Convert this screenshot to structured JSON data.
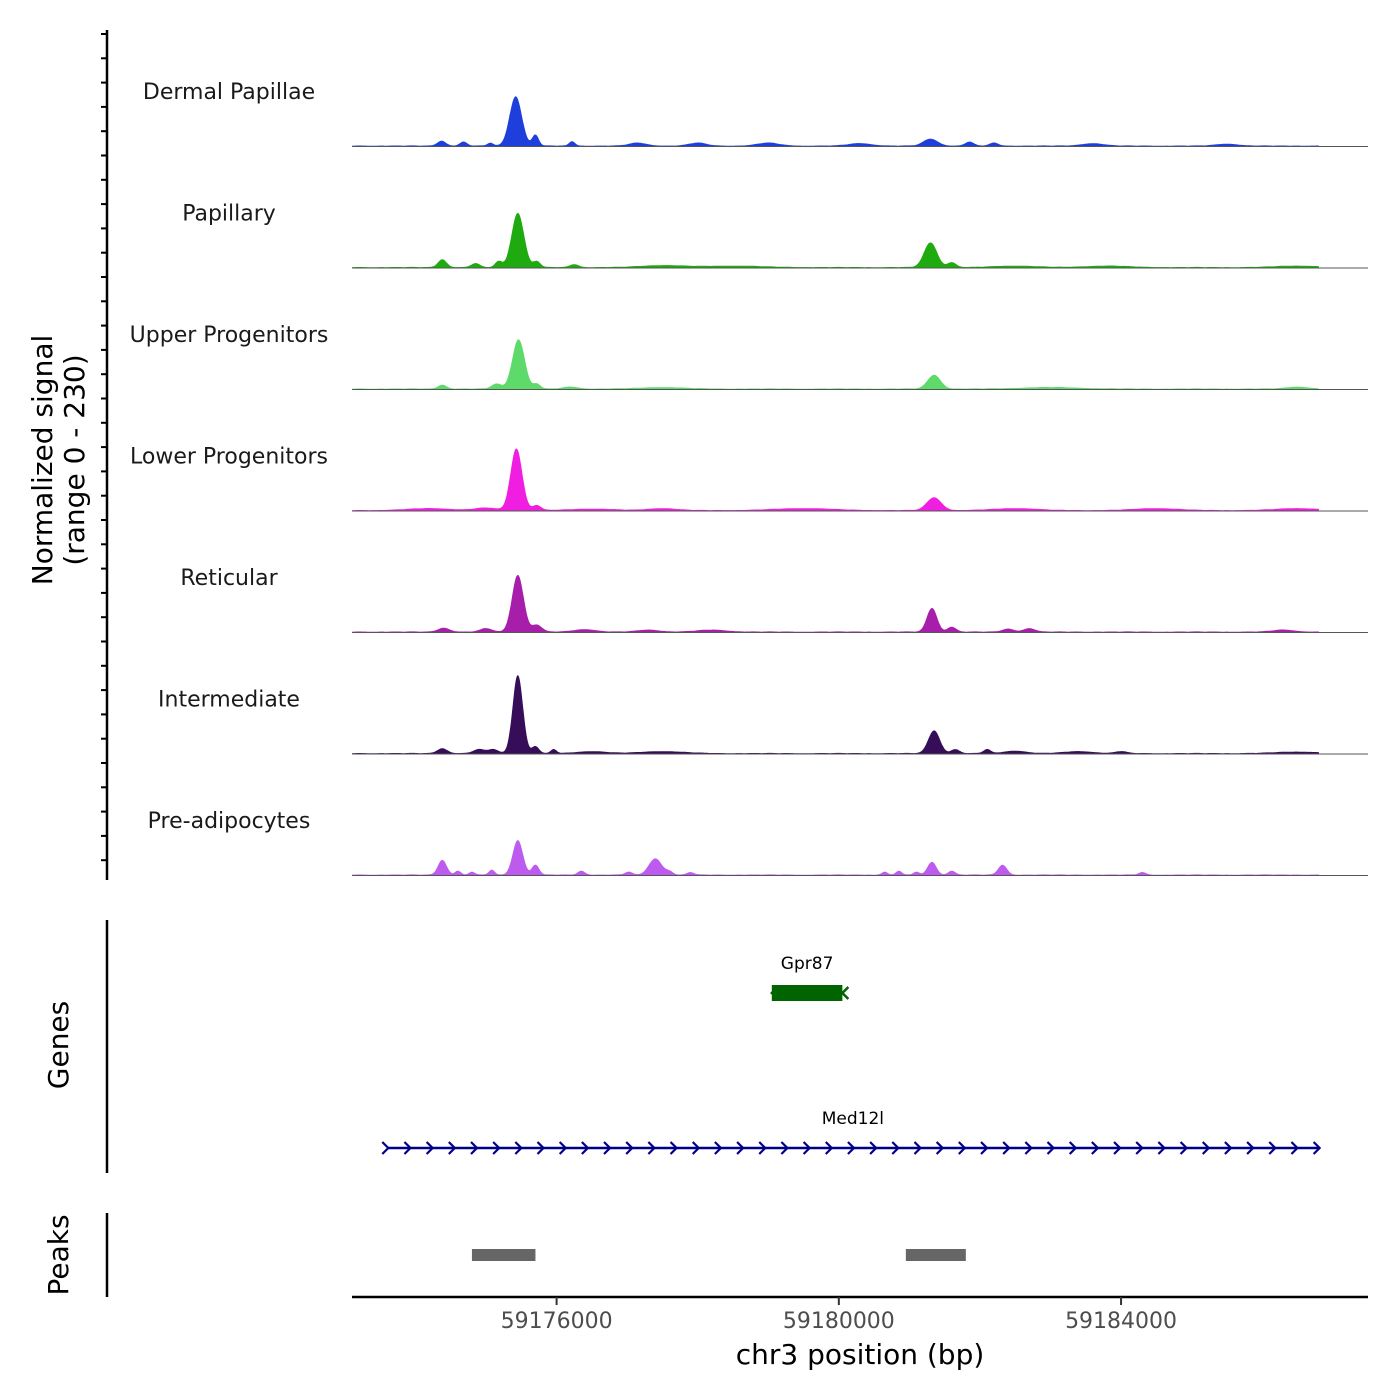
{
  "chart_data": {
    "type": "area",
    "title": "",
    "ylabel_line1": "Normalized signal",
    "ylabel_line2": "(range 0 - 230)",
    "y_range": [
      0,
      230
    ],
    "xlabel": "chr3 position (bp)",
    "x_range": [
      59173100,
      59187500
    ],
    "x_ticks": [
      59176000,
      59180000,
      59184000
    ],
    "x_tick_labels": [
      "59176000",
      "59180000",
      "59184000"
    ],
    "series": [
      {
        "name": "Dermal Papillae",
        "color": "#1E3FDC",
        "peaks": [
          [
            59174370,
            10,
            60
          ],
          [
            59174680,
            8,
            50
          ],
          [
            59175060,
            6,
            40
          ],
          [
            59175420,
            100,
            85
          ],
          [
            59175700,
            22,
            45
          ],
          [
            59176220,
            9,
            40
          ],
          [
            59177150,
            6,
            120
          ],
          [
            59178000,
            6,
            120
          ],
          [
            59179000,
            6,
            150
          ],
          [
            59180300,
            5,
            160
          ],
          [
            59181300,
            14,
            100
          ],
          [
            59181850,
            8,
            60
          ],
          [
            59182200,
            6,
            60
          ],
          [
            59183600,
            5,
            150
          ],
          [
            59185500,
            4,
            150
          ]
        ]
      },
      {
        "name": "Papillary",
        "color": "#1FAA10",
        "peaks": [
          [
            59174380,
            16,
            60
          ],
          [
            59174850,
            8,
            60
          ],
          [
            59175180,
            12,
            50
          ],
          [
            59175450,
            110,
            85
          ],
          [
            59175720,
            12,
            50
          ],
          [
            59176250,
            6,
            60
          ],
          [
            59177500,
            4,
            300
          ],
          [
            59178500,
            3,
            400
          ],
          [
            59181300,
            50,
            90
          ],
          [
            59181600,
            10,
            60
          ],
          [
            59182500,
            3,
            300
          ],
          [
            59183800,
            3,
            300
          ],
          [
            59186500,
            3,
            300
          ]
        ]
      },
      {
        "name": "Upper Progenitors",
        "color": "#5DDA6A",
        "peaks": [
          [
            59174380,
            8,
            60
          ],
          [
            59175150,
            10,
            70
          ],
          [
            59175460,
            100,
            85
          ],
          [
            59175720,
            10,
            50
          ],
          [
            59176200,
            4,
            100
          ],
          [
            59177500,
            3,
            300
          ],
          [
            59181350,
            28,
            90
          ],
          [
            59183000,
            3,
            400
          ],
          [
            59186500,
            4,
            150
          ]
        ]
      },
      {
        "name": "Lower Progenitors",
        "color": "#F01EE0",
        "peaks": [
          [
            59174200,
            4,
            300
          ],
          [
            59175000,
            5,
            150
          ],
          [
            59175430,
            125,
            80
          ],
          [
            59175720,
            10,
            60
          ],
          [
            59176500,
            3,
            300
          ],
          [
            59177500,
            4,
            200
          ],
          [
            59179500,
            4,
            400
          ],
          [
            59181350,
            26,
            100
          ],
          [
            59182500,
            4,
            300
          ],
          [
            59184500,
            4,
            300
          ],
          [
            59186500,
            4,
            300
          ]
        ]
      },
      {
        "name": "Reticular",
        "color": "#A71EAA",
        "peaks": [
          [
            59174400,
            8,
            80
          ],
          [
            59175000,
            7,
            80
          ],
          [
            59175450,
            115,
            80
          ],
          [
            59175720,
            14,
            70
          ],
          [
            59176400,
            5,
            150
          ],
          [
            59177300,
            4,
            150
          ],
          [
            59178200,
            4,
            200
          ],
          [
            59181320,
            48,
            70
          ],
          [
            59181600,
            10,
            60
          ],
          [
            59182400,
            6,
            80
          ],
          [
            59182700,
            7,
            80
          ],
          [
            59186300,
            4,
            150
          ]
        ]
      },
      {
        "name": "Intermediate",
        "color": "#360D59",
        "peaks": [
          [
            59174380,
            10,
            70
          ],
          [
            59174900,
            8,
            80
          ],
          [
            59175100,
            8,
            70
          ],
          [
            59175450,
            158,
            70
          ],
          [
            59175700,
            14,
            50
          ],
          [
            59175960,
            8,
            40
          ],
          [
            59176500,
            4,
            200
          ],
          [
            59177500,
            4,
            300
          ],
          [
            59181350,
            46,
            80
          ],
          [
            59181650,
            8,
            60
          ],
          [
            59182100,
            8,
            50
          ],
          [
            59182500,
            5,
            150
          ],
          [
            59183400,
            4,
            200
          ],
          [
            59184000,
            4,
            80
          ],
          [
            59186500,
            3,
            300
          ]
        ]
      },
      {
        "name": "Pre-adipocytes",
        "color": "#BD5BEF",
        "peaks": [
          [
            59174380,
            30,
            60
          ],
          [
            59174600,
            8,
            40
          ],
          [
            59174800,
            6,
            40
          ],
          [
            59175080,
            10,
            40
          ],
          [
            59175450,
            70,
            70
          ],
          [
            59175700,
            20,
            50
          ],
          [
            59176350,
            8,
            50
          ],
          [
            59177020,
            6,
            50
          ],
          [
            59177400,
            33,
            90
          ],
          [
            59177600,
            6,
            50
          ],
          [
            59177900,
            5,
            50
          ],
          [
            59180650,
            6,
            40
          ],
          [
            59180850,
            8,
            40
          ],
          [
            59181100,
            6,
            40
          ],
          [
            59181320,
            26,
            60
          ],
          [
            59181600,
            8,
            50
          ],
          [
            59182320,
            20,
            60
          ],
          [
            59184300,
            5,
            50
          ]
        ]
      }
    ],
    "genes": [
      {
        "name": "Gpr87",
        "start": 59179050,
        "end": 59180050,
        "strand": "-",
        "color": "#006400",
        "type": "exon"
      },
      {
        "name": "Med12l",
        "start": 59173600,
        "end": 59186800,
        "strand": "+",
        "color": "#00008B",
        "type": "intron"
      }
    ],
    "genes_label": "Genes",
    "peaks_label": "Peaks",
    "peak_regions": [
      [
        59174800,
        59175700
      ],
      [
        59180950,
        59181800
      ]
    ],
    "peak_color": "#666666"
  }
}
